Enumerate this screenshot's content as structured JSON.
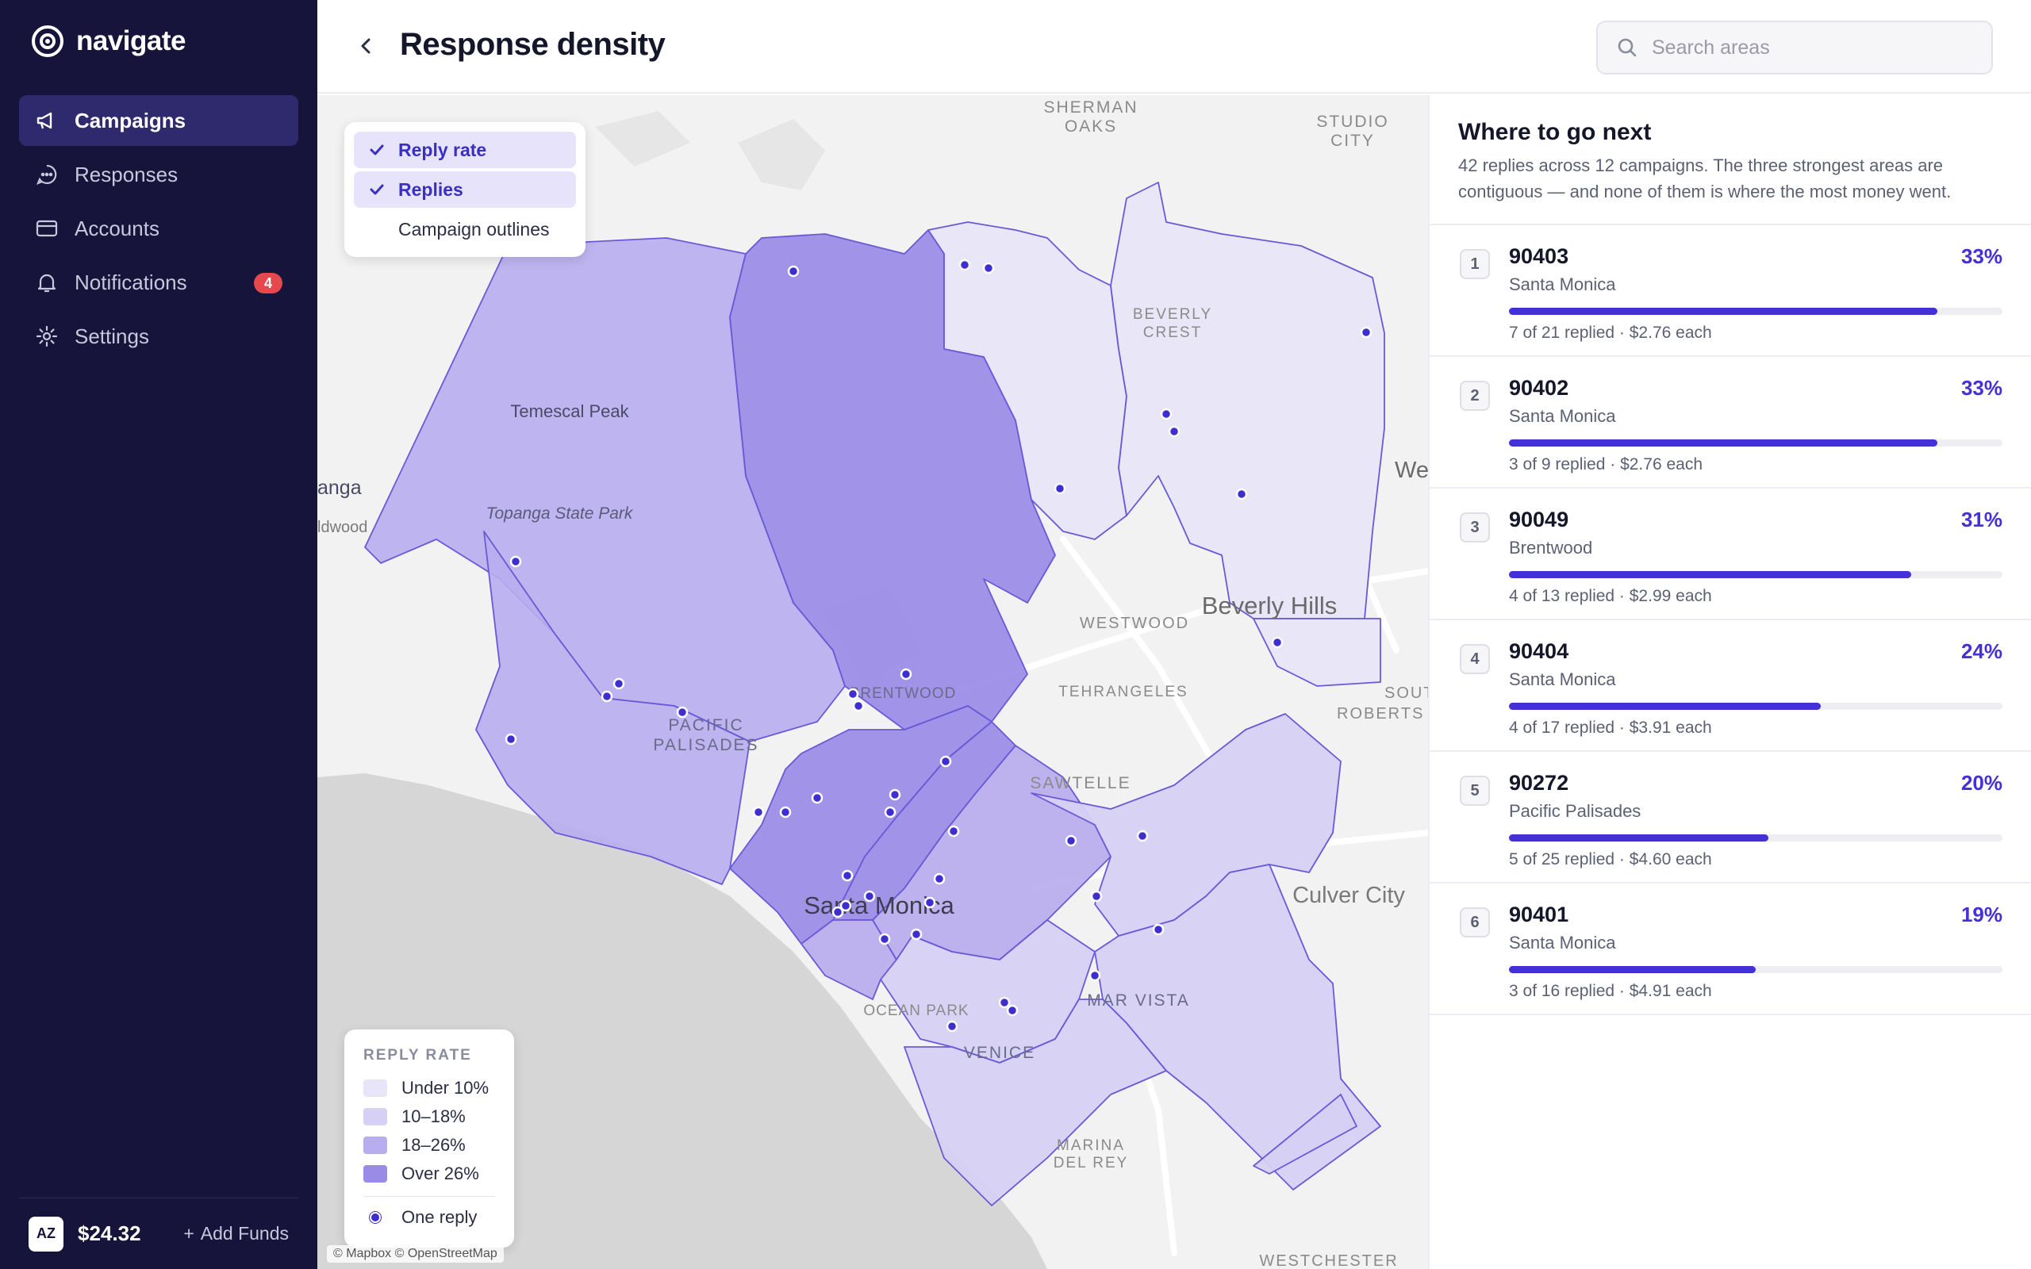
{
  "app": {
    "name": "navigate"
  },
  "sidebar": {
    "items": [
      {
        "label": "Campaigns",
        "icon": "megaphone-icon",
        "active": true
      },
      {
        "label": "Responses",
        "icon": "chat-bubble-icon"
      },
      {
        "label": "Accounts",
        "icon": "card-icon"
      },
      {
        "label": "Notifications",
        "icon": "bell-icon",
        "badge": "4"
      },
      {
        "label": "Settings",
        "icon": "gear-icon"
      }
    ],
    "footer": {
      "avatar": "AZ",
      "balance": "$24.32",
      "add_funds": "Add Funds"
    }
  },
  "header": {
    "title": "Response density",
    "search_placeholder": "Search areas"
  },
  "map": {
    "layers": [
      {
        "label": "Reply rate",
        "checked": true
      },
      {
        "label": "Replies",
        "checked": true
      },
      {
        "label": "Campaign outlines",
        "checked": false
      }
    ],
    "labels": {
      "sherman": "SHERMAN",
      "oaks": "OAKS",
      "studio": "STUDIO",
      "city": "CITY",
      "beverly": "BEVERLY",
      "crest": "CREST",
      "temescal": "Temescal Peak",
      "topanga_sp": "Topanga State Park",
      "topanga": "anga",
      "wildwood": "ldwood",
      "we": "We",
      "beverly_hills": "Beverly Hills",
      "westwood": "WESTWOOD",
      "brentwood": "BRENTWOOD",
      "tehrangeles": "TEHRANGELES",
      "south": "SOUTH",
      "robertson": "ROBERTS",
      "pacific": "PACIFIC",
      "palisades": "PALISADES",
      "sawtelle": "SAWTELLE",
      "santa_monica": "Santa Monica",
      "culver_city": "Culver City",
      "ocean_park": "OCEAN PARK",
      "mar_vista": "MAR VISTA",
      "venice": "VENICE",
      "marina": "MARINA",
      "del_rey": "DEL REY",
      "westchester": "WESTCHESTER"
    },
    "legend": {
      "title": "REPLY RATE",
      "items": [
        {
          "label": "Under 10%",
          "color": "#e8e5f8"
        },
        {
          "label": "10–18%",
          "color": "#d6d0f4"
        },
        {
          "label": "18–26%",
          "color": "#b8adee"
        },
        {
          "label": "Over 26%",
          "color": "#9a8be6"
        }
      ],
      "dot_label": "One reply"
    },
    "attribution": "© Mapbox © OpenStreetMap"
  },
  "colors": {
    "accent": "#4330d6",
    "sidebar_bg": "#17143b",
    "badge": "#e5484d"
  },
  "panel": {
    "title": "Where to go next",
    "subtitle": "42 replies across 12 campaigns. The three strongest areas are contiguous — and none of them is where the most money went.",
    "items": [
      {
        "rank": "1",
        "zip": "90403",
        "city": "Santa Monica",
        "pct": "33%",
        "rate": 0.33,
        "meta": "7 of 21 replied · $2.76 each"
      },
      {
        "rank": "2",
        "zip": "90402",
        "city": "Santa Monica",
        "pct": "33%",
        "rate": 0.33,
        "meta": "3 of 9 replied · $2.76 each"
      },
      {
        "rank": "3",
        "zip": "90049",
        "city": "Brentwood",
        "pct": "31%",
        "rate": 0.31,
        "meta": "4 of 13 replied · $2.99 each"
      },
      {
        "rank": "4",
        "zip": "90404",
        "city": "Santa Monica",
        "pct": "24%",
        "rate": 0.24,
        "meta": "4 of 17 replied · $3.91 each"
      },
      {
        "rank": "5",
        "zip": "90272",
        "city": "Pacific Palisades",
        "pct": "20%",
        "rate": 0.2,
        "meta": "5 of 25 replied · $4.60 each"
      },
      {
        "rank": "6",
        "zip": "90401",
        "city": "Santa Monica",
        "pct": "19%",
        "rate": 0.19,
        "meta": "3 of 16 replied · $4.91 each"
      }
    ]
  }
}
